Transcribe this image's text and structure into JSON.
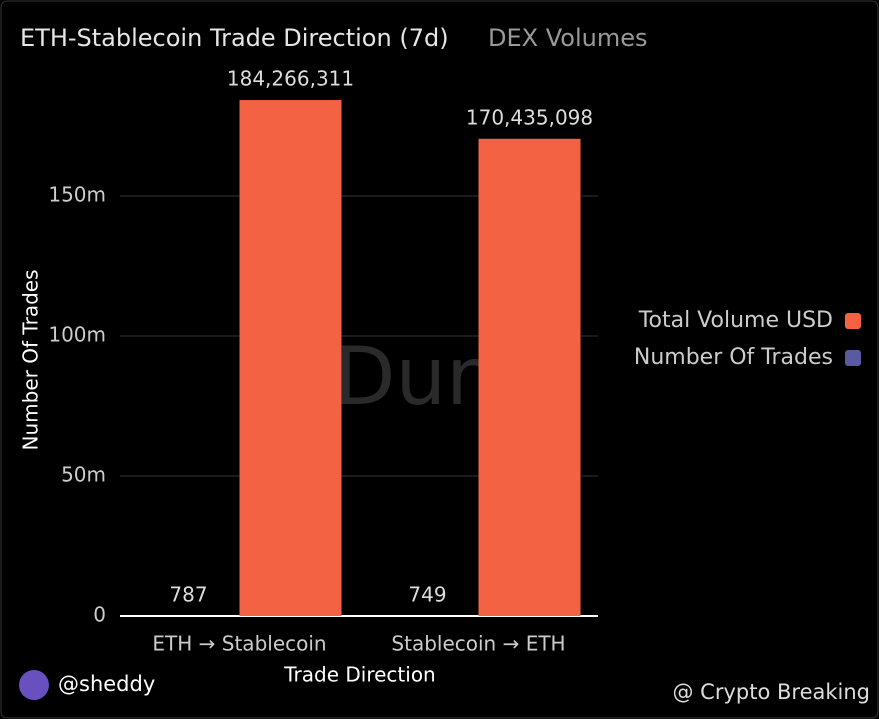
{
  "chart_data": {
    "type": "bar",
    "title": "ETH-Stablecoin Trade Direction (7d)",
    "subtitle": "DEX Volumes",
    "x_label": "Trade Direction",
    "y_label": "Number Of Trades",
    "categories": [
      "ETH → Stablecoin",
      "Stablecoin → ETH"
    ],
    "series": [
      {
        "name": "Number Of Trades",
        "color": "#5a5aa0",
        "values": [
          787,
          749
        ]
      },
      {
        "name": "Total Volume USD",
        "color": "#f26243",
        "values": [
          184266311,
          170435098
        ],
        "value_labels": [
          "184,266,311",
          "170,435,098"
        ]
      }
    ],
    "ylim": [
      0,
      200000000
    ],
    "yticks": [
      0,
      {
        "value": 50000000,
        "label": "50m"
      },
      {
        "value": 100000000,
        "label": "100m"
      },
      {
        "value": 150000000,
        "label": "150m"
      }
    ],
    "grid": true,
    "legend": "right",
    "watermark": "Dune",
    "author": "@sheddy",
    "credit": "@ Crypto Breaking"
  }
}
